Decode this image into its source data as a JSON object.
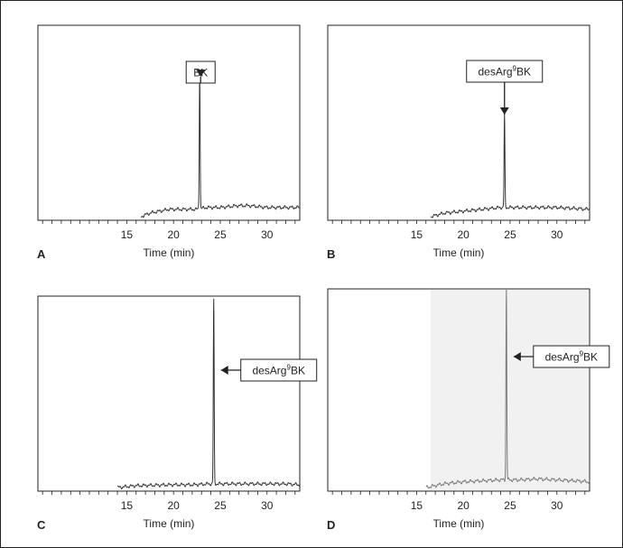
{
  "chart_data": [
    {
      "panel": "A",
      "type": "line",
      "xlabel": "Time (min)",
      "xlim": [
        5.5,
        33.5
      ],
      "ticks": [
        15,
        20,
        25,
        30
      ],
      "peak": {
        "time": 22.8,
        "height": 0.73
      },
      "annotation": {
        "text": "BK",
        "superscript": "",
        "text_after": "",
        "time": 22.9
      },
      "baseline": [
        [
          16.5,
          0.0
        ],
        [
          17.5,
          0.02
        ],
        [
          18.5,
          0.03
        ],
        [
          19.5,
          0.04
        ],
        [
          20.5,
          0.04
        ],
        [
          21.5,
          0.04
        ],
        [
          22.5,
          0.04
        ],
        [
          23.5,
          0.05
        ],
        [
          25,
          0.05
        ],
        [
          27,
          0.06
        ],
        [
          28,
          0.06
        ],
        [
          30,
          0.05
        ],
        [
          33.5,
          0.05
        ]
      ],
      "shaded": false
    },
    {
      "panel": "B",
      "type": "line",
      "xlabel": "Time (min)",
      "xlim": [
        5.5,
        33.5
      ],
      "ticks": [
        15,
        20,
        25,
        30
      ],
      "peak": {
        "time": 24.4,
        "height": 0.5
      },
      "annotation": {
        "text": "desArg",
        "superscript": "9",
        "text_after": "BK",
        "time": 24.4
      },
      "baseline": [
        [
          16.5,
          0.0
        ],
        [
          18,
          0.02
        ],
        [
          20,
          0.03
        ],
        [
          22,
          0.04
        ],
        [
          24,
          0.05
        ],
        [
          26,
          0.05
        ],
        [
          28,
          0.05
        ],
        [
          30,
          0.05
        ],
        [
          33.5,
          0.04
        ]
      ],
      "shaded": false
    },
    {
      "panel": "C",
      "type": "line",
      "xlabel": "Time (min)",
      "xlim": [
        5.5,
        33.5
      ],
      "ticks": [
        15,
        20,
        25,
        30
      ],
      "peak": {
        "time": 24.3,
        "height": 1.0
      },
      "annotation": {
        "text": "desArg",
        "superscript": "9",
        "text_after": "BK",
        "time": 24.3
      },
      "baseline": [
        [
          14,
          0.0
        ],
        [
          16,
          0.01
        ],
        [
          20,
          0.015
        ],
        [
          22,
          0.015
        ],
        [
          24,
          0.02
        ],
        [
          26,
          0.02
        ],
        [
          28,
          0.02
        ],
        [
          30,
          0.02
        ],
        [
          32,
          0.02
        ],
        [
          33.5,
          0.015
        ]
      ],
      "shaded": false
    },
    {
      "panel": "D",
      "type": "line",
      "xlabel": "Time (min)",
      "xlim": [
        5.5,
        33.5
      ],
      "ticks": [
        15,
        20,
        25,
        30
      ],
      "peak": {
        "time": 24.6,
        "height": 1.0
      },
      "annotation": {
        "text": "desArg",
        "superscript": "9",
        "text_after": "BK",
        "time": 24.6
      },
      "baseline": [
        [
          16,
          0.0
        ],
        [
          18,
          0.02
        ],
        [
          20,
          0.03
        ],
        [
          22,
          0.035
        ],
        [
          24,
          0.04
        ],
        [
          26,
          0.04
        ],
        [
          28,
          0.045
        ],
        [
          30,
          0.04
        ],
        [
          32,
          0.035
        ],
        [
          33.5,
          0.03
        ]
      ],
      "shaded": true
    }
  ],
  "colors": {
    "trace": "#333333",
    "trace_light": "#7a7a7a",
    "shade": "#f1f1f1",
    "axis": "#222222"
  }
}
